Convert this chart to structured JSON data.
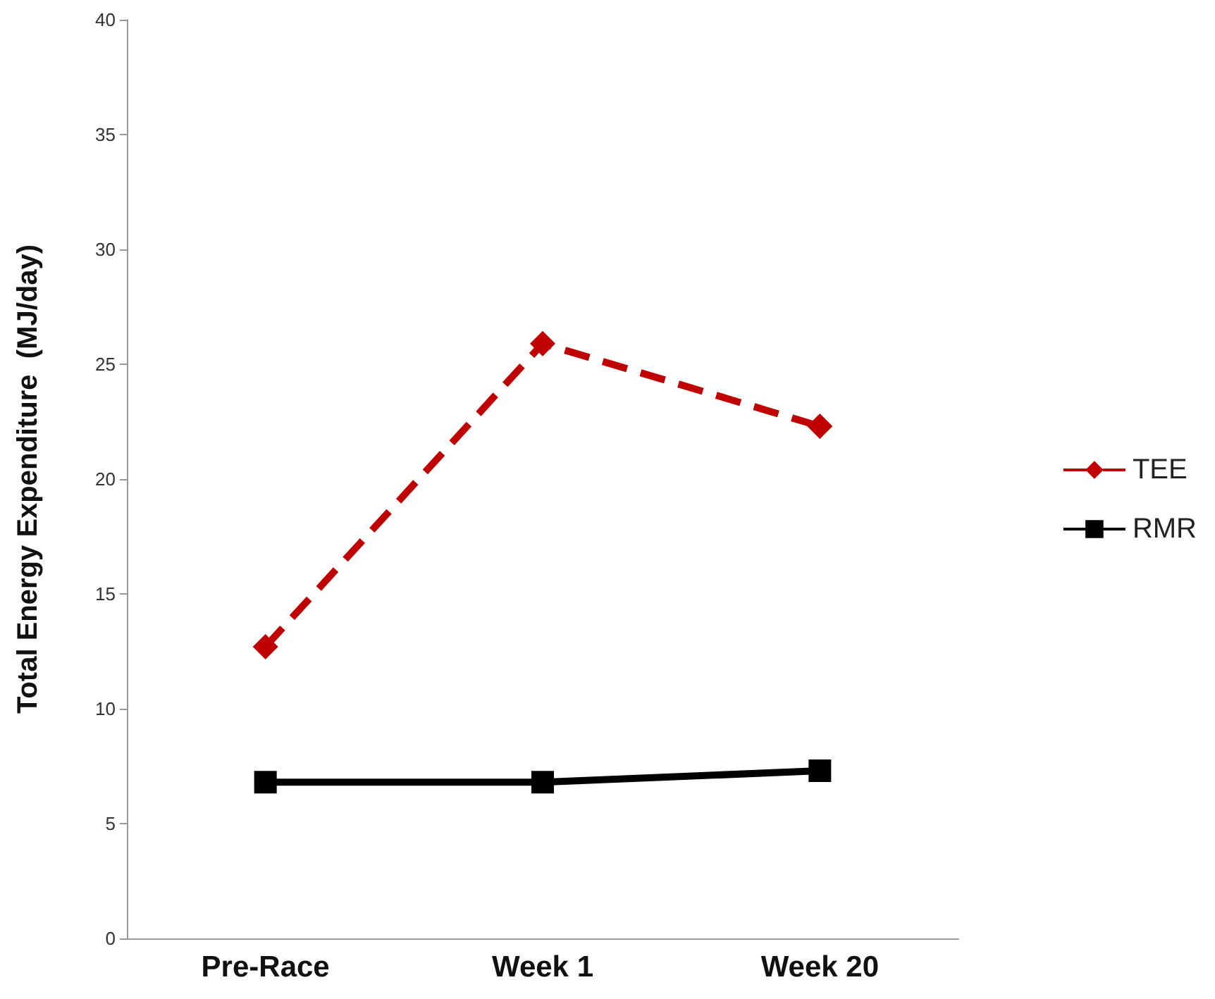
{
  "chart_data": {
    "type": "line",
    "ylabel": "Total Energy Expenditure  (MJ/day)",
    "categories": [
      "Pre-Race",
      "Week 1",
      "Week 20"
    ],
    "series": [
      {
        "name": "TEE",
        "color": "#c00000",
        "values": [
          12.7,
          25.9,
          22.3
        ],
        "marker": "diamond",
        "line_style": "dashed"
      },
      {
        "name": "RMR",
        "color": "#000000",
        "values": [
          6.8,
          6.8,
          7.3
        ],
        "marker": "square",
        "line_style": "solid"
      }
    ],
    "ylim": [
      0,
      40
    ],
    "yticks": [
      0,
      5,
      10,
      15,
      20,
      25,
      30,
      35,
      40
    ],
    "grid": false,
    "legend": "right"
  }
}
